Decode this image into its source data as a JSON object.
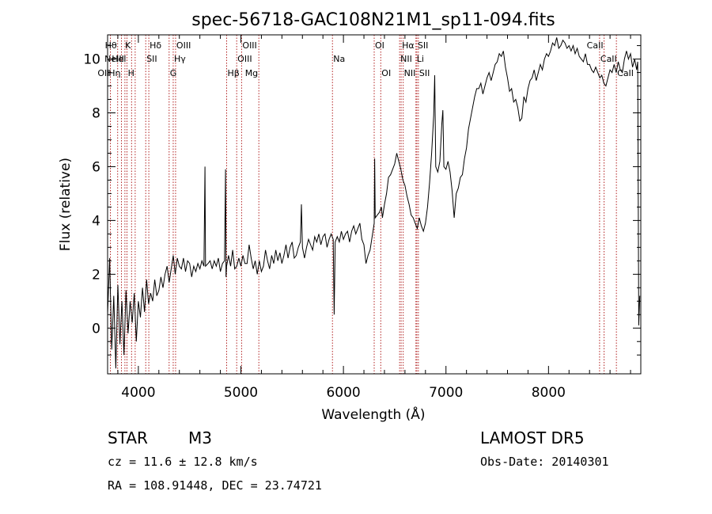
{
  "page": {
    "title": "spec-56718-GAC108N21M1_sp11-094.fits"
  },
  "info": {
    "object_class": "STAR",
    "subclass": "M3",
    "survey": "LAMOST DR5",
    "cz": "cz = 11.6 ± 12.8 km/s",
    "obs_date": "Obs-Date: 20140301",
    "coords": "RA = 108.91448, DEC =  23.74721"
  },
  "colors": {
    "spectrum": "#000000",
    "line_marker": "#b22222",
    "axis": "#000000",
    "background": "#ffffff"
  },
  "chart_data": {
    "type": "line",
    "title": "spec-56718-GAC108N21M1_sp11-094.fits",
    "xlabel": "Wavelength (Å)",
    "ylabel": "Flux (relative)",
    "xlim": [
      3700,
      8900
    ],
    "ylim": [
      -1.7,
      10.9
    ],
    "grid": false,
    "x_ticks": [
      4000,
      5000,
      6000,
      7000,
      8000
    ],
    "y_ticks": [
      0,
      2,
      4,
      6,
      8,
      10
    ],
    "series": [
      {
        "points": [
          [
            3700,
            0.5
          ],
          [
            3720,
            2.6
          ],
          [
            3740,
            -0.8
          ],
          [
            3760,
            1.2
          ],
          [
            3780,
            -1.5
          ],
          [
            3800,
            1.6
          ],
          [
            3820,
            -0.6
          ],
          [
            3840,
            1.0
          ],
          [
            3860,
            -1.0
          ],
          [
            3880,
            1.4
          ],
          [
            3900,
            -0.2
          ],
          [
            3920,
            1.0
          ],
          [
            3940,
            0.2
          ],
          [
            3960,
            1.3
          ],
          [
            3980,
            -0.5
          ],
          [
            4000,
            1.0
          ],
          [
            4020,
            0.4
          ],
          [
            4040,
            1.5
          ],
          [
            4060,
            0.6
          ],
          [
            4080,
            1.8
          ],
          [
            4100,
            0.9
          ],
          [
            4120,
            1.3
          ],
          [
            4140,
            1.0
          ],
          [
            4160,
            1.8
          ],
          [
            4180,
            1.2
          ],
          [
            4200,
            1.4
          ],
          [
            4220,
            1.9
          ],
          [
            4240,
            1.5
          ],
          [
            4260,
            2.0
          ],
          [
            4280,
            2.3
          ],
          [
            4300,
            1.7
          ],
          [
            4320,
            2.2
          ],
          [
            4340,
            2.7
          ],
          [
            4360,
            2.0
          ],
          [
            4380,
            2.6
          ],
          [
            4400,
            2.3
          ],
          [
            4420,
            2.2
          ],
          [
            4440,
            2.6
          ],
          [
            4460,
            2.1
          ],
          [
            4480,
            2.5
          ],
          [
            4500,
            2.4
          ],
          [
            4520,
            1.9
          ],
          [
            4540,
            2.3
          ],
          [
            4560,
            2.1
          ],
          [
            4580,
            2.4
          ],
          [
            4600,
            2.2
          ],
          [
            4620,
            2.5
          ],
          [
            4640,
            2.3
          ],
          [
            4650,
            6.0
          ],
          [
            4655,
            2.3
          ],
          [
            4680,
            2.4
          ],
          [
            4700,
            2.5
          ],
          [
            4720,
            2.2
          ],
          [
            4740,
            2.5
          ],
          [
            4760,
            2.3
          ],
          [
            4780,
            2.6
          ],
          [
            4800,
            2.1
          ],
          [
            4820,
            2.4
          ],
          [
            4840,
            2.5
          ],
          [
            4850,
            5.9
          ],
          [
            4855,
            1.9
          ],
          [
            4860,
            2.3
          ],
          [
            4880,
            2.7
          ],
          [
            4900,
            2.3
          ],
          [
            4920,
            2.9
          ],
          [
            4940,
            2.2
          ],
          [
            4960,
            2.3
          ],
          [
            4980,
            2.6
          ],
          [
            5000,
            2.3
          ],
          [
            5020,
            2.7
          ],
          [
            5040,
            2.4
          ],
          [
            5060,
            2.4
          ],
          [
            5080,
            3.1
          ],
          [
            5100,
            2.6
          ],
          [
            5120,
            2.2
          ],
          [
            5140,
            2.5
          ],
          [
            5160,
            2.0
          ],
          [
            5180,
            2.5
          ],
          [
            5200,
            2.1
          ],
          [
            5220,
            2.3
          ],
          [
            5240,
            2.9
          ],
          [
            5260,
            2.5
          ],
          [
            5280,
            2.2
          ],
          [
            5300,
            2.7
          ],
          [
            5320,
            2.4
          ],
          [
            5340,
            2.9
          ],
          [
            5360,
            2.5
          ],
          [
            5380,
            2.8
          ],
          [
            5400,
            2.4
          ],
          [
            5420,
            2.7
          ],
          [
            5440,
            3.1
          ],
          [
            5460,
            2.6
          ],
          [
            5480,
            3.0
          ],
          [
            5500,
            3.2
          ],
          [
            5520,
            2.6
          ],
          [
            5540,
            2.7
          ],
          [
            5560,
            3.0
          ],
          [
            5580,
            3.2
          ],
          [
            5590,
            4.6
          ],
          [
            5600,
            3.0
          ],
          [
            5620,
            2.6
          ],
          [
            5640,
            3.0
          ],
          [
            5660,
            3.3
          ],
          [
            5680,
            3.1
          ],
          [
            5700,
            2.9
          ],
          [
            5720,
            3.4
          ],
          [
            5740,
            3.2
          ],
          [
            5760,
            3.5
          ],
          [
            5780,
            3.1
          ],
          [
            5800,
            3.4
          ],
          [
            5820,
            3.5
          ],
          [
            5840,
            3.0
          ],
          [
            5860,
            3.3
          ],
          [
            5880,
            3.5
          ],
          [
            5900,
            3.3
          ],
          [
            5910,
            0.5
          ],
          [
            5920,
            3.2
          ],
          [
            5940,
            3.4
          ],
          [
            5960,
            3.2
          ],
          [
            5980,
            3.6
          ],
          [
            6000,
            3.3
          ],
          [
            6020,
            3.5
          ],
          [
            6040,
            3.6
          ],
          [
            6060,
            3.2
          ],
          [
            6080,
            3.6
          ],
          [
            6100,
            3.8
          ],
          [
            6120,
            3.5
          ],
          [
            6140,
            3.7
          ],
          [
            6160,
            3.9
          ],
          [
            6180,
            3.3
          ],
          [
            6200,
            3.1
          ],
          [
            6220,
            2.4
          ],
          [
            6240,
            2.7
          ],
          [
            6260,
            2.9
          ],
          [
            6280,
            3.4
          ],
          [
            6300,
            3.9
          ],
          [
            6305,
            6.3
          ],
          [
            6310,
            4.1
          ],
          [
            6330,
            4.2
          ],
          [
            6350,
            4.3
          ],
          [
            6370,
            4.5
          ],
          [
            6380,
            4.1
          ],
          [
            6400,
            4.6
          ],
          [
            6420,
            5.0
          ],
          [
            6440,
            5.6
          ],
          [
            6460,
            5.7
          ],
          [
            6480,
            5.9
          ],
          [
            6500,
            6.1
          ],
          [
            6520,
            6.5
          ],
          [
            6540,
            6.2
          ],
          [
            6560,
            5.9
          ],
          [
            6580,
            5.5
          ],
          [
            6600,
            5.3
          ],
          [
            6620,
            4.9
          ],
          [
            6640,
            4.6
          ],
          [
            6660,
            4.2
          ],
          [
            6680,
            4.1
          ],
          [
            6700,
            3.9
          ],
          [
            6720,
            3.7
          ],
          [
            6740,
            4.1
          ],
          [
            6760,
            3.8
          ],
          [
            6780,
            3.6
          ],
          [
            6800,
            3.9
          ],
          [
            6820,
            4.5
          ],
          [
            6840,
            5.4
          ],
          [
            6860,
            6.5
          ],
          [
            6880,
            7.9
          ],
          [
            6890,
            9.4
          ],
          [
            6900,
            6.0
          ],
          [
            6920,
            5.8
          ],
          [
            6940,
            6.2
          ],
          [
            6960,
            7.6
          ],
          [
            6970,
            8.1
          ],
          [
            6980,
            6.0
          ],
          [
            7000,
            5.9
          ],
          [
            7020,
            6.2
          ],
          [
            7040,
            5.8
          ],
          [
            7060,
            5.1
          ],
          [
            7080,
            4.1
          ],
          [
            7100,
            5.0
          ],
          [
            7120,
            5.2
          ],
          [
            7140,
            5.6
          ],
          [
            7160,
            5.7
          ],
          [
            7180,
            6.3
          ],
          [
            7200,
            6.7
          ],
          [
            7220,
            7.4
          ],
          [
            7240,
            7.8
          ],
          [
            7260,
            8.2
          ],
          [
            7280,
            8.6
          ],
          [
            7300,
            8.9
          ],
          [
            7320,
            8.9
          ],
          [
            7340,
            9.1
          ],
          [
            7360,
            8.7
          ],
          [
            7380,
            9.0
          ],
          [
            7400,
            9.3
          ],
          [
            7420,
            9.5
          ],
          [
            7440,
            9.2
          ],
          [
            7460,
            9.5
          ],
          [
            7480,
            9.8
          ],
          [
            7500,
            9.9
          ],
          [
            7520,
            10.2
          ],
          [
            7540,
            10.1
          ],
          [
            7560,
            10.3
          ],
          [
            7580,
            9.7
          ],
          [
            7600,
            9.3
          ],
          [
            7620,
            8.8
          ],
          [
            7640,
            8.9
          ],
          [
            7660,
            8.4
          ],
          [
            7680,
            8.5
          ],
          [
            7700,
            8.2
          ],
          [
            7720,
            7.7
          ],
          [
            7740,
            7.8
          ],
          [
            7760,
            8.6
          ],
          [
            7780,
            8.4
          ],
          [
            7800,
            8.9
          ],
          [
            7820,
            9.2
          ],
          [
            7840,
            9.3
          ],
          [
            7860,
            9.6
          ],
          [
            7880,
            9.2
          ],
          [
            7900,
            9.5
          ],
          [
            7920,
            9.8
          ],
          [
            7940,
            9.6
          ],
          [
            7960,
            10.0
          ],
          [
            7980,
            10.2
          ],
          [
            8000,
            10.1
          ],
          [
            8020,
            10.3
          ],
          [
            8040,
            10.6
          ],
          [
            8060,
            10.5
          ],
          [
            8080,
            10.8
          ],
          [
            8100,
            10.4
          ],
          [
            8120,
            10.5
          ],
          [
            8140,
            10.7
          ],
          [
            8160,
            10.6
          ],
          [
            8180,
            10.4
          ],
          [
            8200,
            10.5
          ],
          [
            8220,
            10.3
          ],
          [
            8240,
            10.5
          ],
          [
            8260,
            10.2
          ],
          [
            8280,
            10.4
          ],
          [
            8300,
            10.1
          ],
          [
            8320,
            10.0
          ],
          [
            8340,
            9.9
          ],
          [
            8360,
            10.2
          ],
          [
            8380,
            9.8
          ],
          [
            8400,
            9.8
          ],
          [
            8420,
            9.6
          ],
          [
            8440,
            9.5
          ],
          [
            8460,
            9.7
          ],
          [
            8480,
            9.5
          ],
          [
            8500,
            9.3
          ],
          [
            8520,
            9.4
          ],
          [
            8540,
            9.1
          ],
          [
            8560,
            9.0
          ],
          [
            8580,
            9.3
          ],
          [
            8600,
            9.6
          ],
          [
            8620,
            9.5
          ],
          [
            8640,
            9.8
          ],
          [
            8660,
            9.5
          ],
          [
            8680,
            9.9
          ],
          [
            8700,
            9.6
          ],
          [
            8720,
            9.5
          ],
          [
            8740,
            10.0
          ],
          [
            8760,
            10.3
          ],
          [
            8780,
            10.0
          ],
          [
            8800,
            10.2
          ],
          [
            8820,
            9.7
          ],
          [
            8840,
            10.0
          ],
          [
            8860,
            9.6
          ],
          [
            8870,
            9.9
          ],
          [
            8880,
            0.1
          ],
          [
            8890,
            1.2
          ]
        ]
      }
    ],
    "lines": [
      {
        "w": 3727,
        "label": "OII",
        "row": 2,
        "side": "right"
      },
      {
        "w": 3798,
        "label": "Hθ",
        "row": 0,
        "side": "right"
      },
      {
        "w": 3835,
        "label": "Hη",
        "row": 2,
        "side": "right"
      },
      {
        "w": 3869,
        "label": "NeIII",
        "row": 1,
        "side": "right"
      },
      {
        "w": 3889,
        "label": "HeI",
        "row": 1,
        "side": "right"
      },
      {
        "w": 3934,
        "label": "K",
        "row": 0,
        "side": "right"
      },
      {
        "w": 3969,
        "label": "H",
        "row": 2,
        "side": "right"
      },
      {
        "w": 4072,
        "label": "SII",
        "row": 1,
        "side": "left"
      },
      {
        "w": 4102,
        "label": "Hδ",
        "row": 0,
        "side": "left"
      },
      {
        "w": 4300,
        "label": "G",
        "row": 2,
        "side": "left"
      },
      {
        "w": 4340,
        "label": "Hγ",
        "row": 1,
        "side": "left"
      },
      {
        "w": 4363,
        "label": "OIII",
        "row": 0,
        "side": "left"
      },
      {
        "w": 4861,
        "label": "Hβ",
        "row": 2,
        "side": "left"
      },
      {
        "w": 4959,
        "label": "OIII",
        "row": 1,
        "side": "left"
      },
      {
        "w": 5007,
        "label": "OIII",
        "row": 0,
        "side": "left"
      },
      {
        "w": 5175,
        "label": "Mg",
        "row": 2,
        "side": "right"
      },
      {
        "w": 5893,
        "label": "Na",
        "row": 1,
        "side": "left"
      },
      {
        "w": 6300,
        "label": "OI",
        "row": 0,
        "side": "left"
      },
      {
        "w": 6364,
        "label": "OI",
        "row": 2,
        "side": "left"
      },
      {
        "w": 6548,
        "label": "NII",
        "row": 1,
        "side": "left"
      },
      {
        "w": 6563,
        "label": "Hα",
        "row": 0,
        "side": "left"
      },
      {
        "w": 6583,
        "label": "NII",
        "row": 2,
        "side": "left"
      },
      {
        "w": 6707,
        "label": "Li",
        "row": 1,
        "side": "left"
      },
      {
        "w": 6716,
        "label": "SII",
        "row": 0,
        "side": "left"
      },
      {
        "w": 6731,
        "label": "SII",
        "row": 2,
        "side": "left"
      },
      {
        "w": 8498,
        "label": "CaII",
        "row": 1,
        "side": "left"
      },
      {
        "w": 8542,
        "label": "CaII",
        "row": 0,
        "side": "right"
      },
      {
        "w": 8662,
        "label": "CaII",
        "row": 2,
        "side": "left"
      }
    ]
  }
}
